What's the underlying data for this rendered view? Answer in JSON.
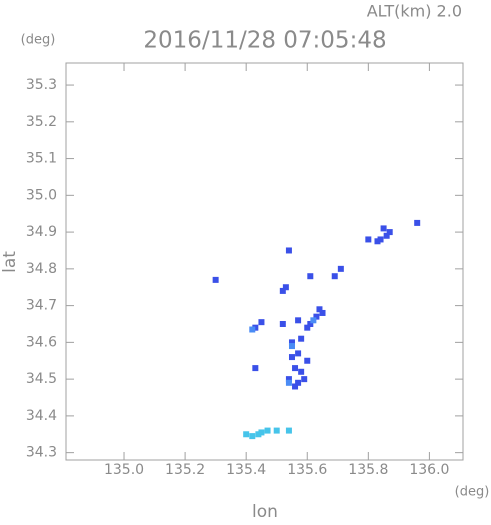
{
  "chart_data": {
    "type": "scatter",
    "alt_label": "ALT(km) 2.0",
    "title": "2016/11/28 07:05:48",
    "y_unit": "(deg)",
    "x_unit": "(deg)",
    "ylabel": "lat",
    "xlabel": "lon",
    "xlim": [
      134.81,
      136.11
    ],
    "ylim": [
      34.28,
      35.36
    ],
    "xticks": [
      {
        "value": 135,
        "label": "135.0"
      },
      135.2,
      135.4,
      135.6,
      135.8,
      {
        "value": 136,
        "label": "136.0"
      }
    ],
    "yticks": [
      34.3,
      34.4,
      34.5,
      34.6,
      34.7,
      34.8,
      34.9,
      {
        "value": 35,
        "label": "35.0"
      },
      35.1,
      35.2,
      35.3
    ],
    "grid": false,
    "series": [
      {
        "color": "#3a50e8",
        "x": [
          135.86,
          135.84,
          135.83,
          135.8,
          135.87,
          135.96,
          135.85,
          135.3,
          135.54,
          135.61,
          135.71,
          135.69,
          135.52,
          135.53,
          135.43,
          135.45,
          135.65,
          135.63,
          135.61,
          135.6,
          135.57,
          135.52,
          135.55,
          135.57,
          135.55,
          135.56,
          135.58,
          135.54,
          135.57,
          135.59,
          135.56,
          135.6,
          135.43,
          135.64,
          135.58
        ],
        "values": [
          34.89,
          34.88,
          34.875,
          34.88,
          34.9,
          34.925,
          34.91,
          34.77,
          34.85,
          34.78,
          34.8,
          34.78,
          34.74,
          34.75,
          34.64,
          34.655,
          34.68,
          34.67,
          34.65,
          34.64,
          34.66,
          34.65,
          34.6,
          34.57,
          34.56,
          34.53,
          34.52,
          34.5,
          34.49,
          34.5,
          34.48,
          34.55,
          34.53,
          34.69,
          34.61
        ]
      },
      {
        "color": "#4a8cf5",
        "x": [
          135.42,
          135.54,
          135.55,
          135.62
        ],
        "values": [
          34.635,
          34.49,
          34.59,
          34.66
        ]
      },
      {
        "color": "#46c4ea",
        "x": [
          135.4,
          135.42,
          135.44,
          135.45,
          135.47,
          135.5,
          135.54
        ],
        "values": [
          34.35,
          34.345,
          34.35,
          34.355,
          34.36,
          34.36,
          34.36
        ]
      }
    ]
  }
}
